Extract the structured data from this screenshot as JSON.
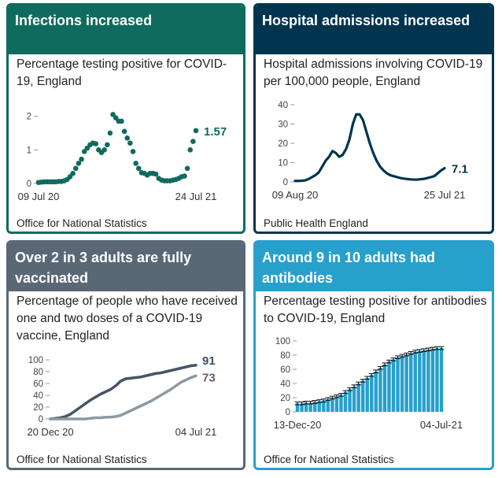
{
  "cards": [
    {
      "title": "Infections increased",
      "subtitle": "Percentage testing positive for COVID-19, England",
      "source": "Office for National Statistics",
      "color": "#0f6b5d"
    },
    {
      "title": "Hospital admissions increased",
      "subtitle": "Hospital admissions involving COVID-19 per 100,000 people, England",
      "source": "Public Health England",
      "color": "#00344f"
    },
    {
      "title": "Over 2 in 3 adults are fully vaccinated",
      "subtitle": "Percentage of people who have received one and two doses of a COVID-19 vaccine, England",
      "source": "Office for National Statistics",
      "color": "#5a6876"
    },
    {
      "title": "Around 9 in 10 adults had antibodies",
      "subtitle": "Percentage testing positive for antibodies to COVID-19, England",
      "source": "Office for National Statistics",
      "color": "#27a0cc"
    }
  ],
  "chart_data": [
    {
      "type": "scatter",
      "title": "Percentage testing positive for COVID-19, England",
      "x_start_label": "09 Jul 20",
      "x_end_label": "24 Jul 21",
      "ylim": [
        0,
        2.2
      ],
      "yticks": [
        0,
        1,
        2
      ],
      "color": "#0f6b5d",
      "end_label": "1.57",
      "series": [
        {
          "values": [
            0.03,
            0.04,
            0.05,
            0.05,
            0.05,
            0.05,
            0.05,
            0.06,
            0.06,
            0.08,
            0.12,
            0.2,
            0.3,
            0.45,
            0.6,
            0.72,
            0.95,
            1.05,
            1.15,
            1.2,
            1.18,
            1.0,
            0.92,
            1.0,
            1.15,
            1.5,
            2.05,
            1.95,
            1.85,
            1.85,
            1.55,
            1.35,
            1.2,
            0.95,
            0.6,
            0.45,
            0.32,
            0.3,
            0.25,
            0.3,
            0.3,
            0.28,
            0.15,
            0.1,
            0.08,
            0.08,
            0.08,
            0.1,
            0.12,
            0.15,
            0.2,
            0.22,
            0.45,
            1.0,
            1.25,
            1.57
          ]
        }
      ]
    },
    {
      "type": "line",
      "title": "Hospital admissions involving COVID-19 per 100,000 people, England",
      "x_start_label": "09 Aug 20",
      "x_end_label": "25 Jul 21",
      "ylim": [
        0,
        40
      ],
      "yticks": [
        0,
        10,
        20,
        30,
        40
      ],
      "color": "#00344f",
      "end_label": "7.1",
      "series": [
        {
          "values": [
            0.5,
            0.5,
            0.6,
            0.8,
            1.5,
            2.5,
            3.5,
            5,
            8,
            11,
            13,
            16,
            15,
            13,
            14,
            17,
            22,
            30,
            35,
            35,
            32,
            26,
            20,
            15,
            11,
            8,
            6,
            4.5,
            3.5,
            3,
            2.5,
            2,
            1.7,
            1.5,
            1.3,
            1.2,
            1.2,
            1.4,
            1.6,
            2,
            2.5,
            3,
            4.5,
            6,
            7.1
          ]
        }
      ]
    },
    {
      "type": "line",
      "title": "Percentage of people who have received one and two doses of a COVID-19 vaccine, England",
      "x_start_label": "20 Dec 20",
      "x_end_label": "04 Jul 21",
      "ylim": [
        0,
        100
      ],
      "yticks": [
        0,
        20,
        40,
        60,
        80,
        100
      ],
      "series": [
        {
          "color": "#455565",
          "end_label": "91",
          "values": [
            0,
            1,
            2,
            4,
            8,
            14,
            20,
            26,
            32,
            37,
            42,
            46,
            50,
            56,
            64,
            68,
            69,
            70,
            71,
            73,
            75,
            77,
            78,
            80,
            82,
            84,
            86,
            88,
            90,
            91
          ]
        },
        {
          "color": "#8a9aa6",
          "end_label": "73",
          "values": [
            0,
            0,
            0,
            0,
            0,
            0,
            0,
            0,
            1,
            2,
            2,
            3,
            3,
            4,
            6,
            10,
            14,
            18,
            22,
            26,
            30,
            35,
            40,
            45,
            50,
            56,
            62,
            66,
            70,
            73
          ]
        }
      ]
    },
    {
      "type": "bar",
      "title": "Percentage testing positive for antibodies to COVID-19, England",
      "x_start_label": "13-Dec-20",
      "x_end_label": "04-Jul-21",
      "ylim": [
        0,
        100
      ],
      "yticks": [
        0,
        20,
        40,
        60,
        80,
        100
      ],
      "color": "#27a0cc",
      "series": [
        {
          "values": [
            12,
            12,
            13,
            13,
            14,
            15,
            16,
            18,
            20,
            22,
            24,
            28,
            32,
            36,
            40,
            44,
            48,
            52,
            57,
            62,
            67,
            71,
            74,
            77,
            79,
            81,
            83,
            85,
            86,
            87,
            88,
            89,
            90,
            90
          ]
        }
      ]
    }
  ]
}
